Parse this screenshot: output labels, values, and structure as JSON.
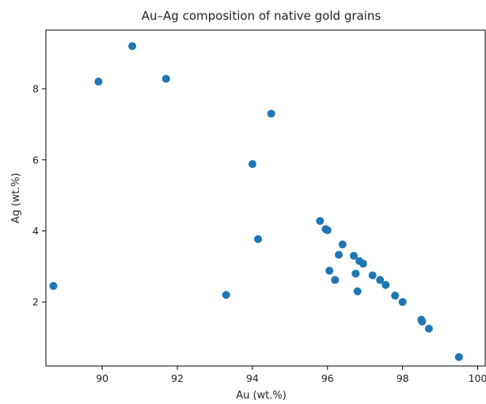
{
  "chart_data": {
    "type": "scatter",
    "title": "Au–Ag composition of native gold grains",
    "xlabel": "Au (wt.%)",
    "ylabel": "Ag (wt.%)",
    "xlim": [
      88.5,
      100.2
    ],
    "ylim": [
      0.2,
      9.65
    ],
    "xticks": [
      "90",
      "92",
      "94",
      "96",
      "98",
      "100"
    ],
    "yticks": [
      "2",
      "4",
      "6",
      "8"
    ],
    "grid": false,
    "marker_color": "#1f77b4",
    "points": [
      {
        "x": 88.7,
        "y": 2.45
      },
      {
        "x": 89.9,
        "y": 8.2
      },
      {
        "x": 90.8,
        "y": 9.2
      },
      {
        "x": 91.7,
        "y": 8.28
      },
      {
        "x": 93.3,
        "y": 2.2
      },
      {
        "x": 94.0,
        "y": 5.88
      },
      {
        "x": 94.15,
        "y": 3.77
      },
      {
        "x": 94.5,
        "y": 7.3
      },
      {
        "x": 95.8,
        "y": 4.28
      },
      {
        "x": 95.95,
        "y": 4.05
      },
      {
        "x": 96.0,
        "y": 4.02
      },
      {
        "x": 96.05,
        "y": 2.88
      },
      {
        "x": 96.2,
        "y": 2.62
      },
      {
        "x": 96.3,
        "y": 3.33
      },
      {
        "x": 96.4,
        "y": 3.62
      },
      {
        "x": 96.7,
        "y": 3.3
      },
      {
        "x": 96.75,
        "y": 2.8
      },
      {
        "x": 96.8,
        "y": 2.3
      },
      {
        "x": 96.85,
        "y": 3.15
      },
      {
        "x": 96.95,
        "y": 3.08
      },
      {
        "x": 97.2,
        "y": 2.75
      },
      {
        "x": 97.4,
        "y": 2.62
      },
      {
        "x": 97.55,
        "y": 2.48
      },
      {
        "x": 97.8,
        "y": 2.18
      },
      {
        "x": 98.0,
        "y": 2.0
      },
      {
        "x": 98.5,
        "y": 1.5
      },
      {
        "x": 98.52,
        "y": 1.45
      },
      {
        "x": 98.7,
        "y": 1.25
      },
      {
        "x": 99.5,
        "y": 0.45
      }
    ]
  }
}
